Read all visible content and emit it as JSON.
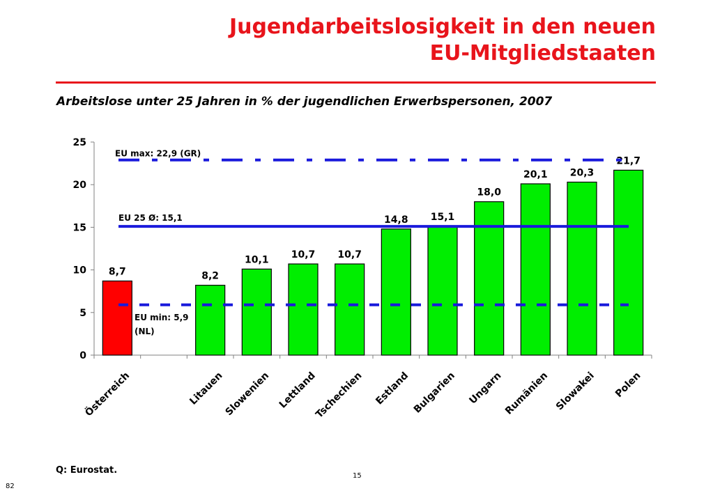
{
  "slide": {
    "title_line1": "Jugendarbeitslosigkeit in den neuen",
    "title_line2": "EU-Mitgliedstaaten",
    "subtitle": "Arbeitslose unter 25 Jahren in % der jugendlichen Erwerbspersonen, 2007",
    "source": "Q: Eurostat.",
    "page_number": "15",
    "corner_number": "82"
  },
  "chart_data": {
    "type": "bar",
    "categories": [
      "Österreich",
      "",
      "Litauen",
      "Slowenien",
      "Lettland",
      "Tschechien",
      "Estland",
      "Bulgarien",
      "Ungarn",
      "Rumänien",
      "Slowakei",
      "Polen"
    ],
    "values": [
      8.7,
      null,
      8.2,
      10.1,
      10.7,
      10.7,
      14.8,
      15.1,
      18.0,
      20.1,
      20.3,
      21.7
    ],
    "data_labels": [
      "8,7",
      "",
      "8,2",
      "10,1",
      "10,7",
      "10,7",
      "14,8",
      "15,1",
      "18,0",
      "20,1",
      "20,3",
      "21,7"
    ],
    "bar_colors": [
      "#ff0000",
      "",
      "#00ee00",
      "#00ee00",
      "#00ee00",
      "#00ee00",
      "#00ee00",
      "#00ee00",
      "#00ee00",
      "#00ee00",
      "#00ee00",
      "#00ee00"
    ],
    "ylim": [
      0,
      25
    ],
    "yticks": [
      0,
      5,
      10,
      15,
      20,
      25
    ],
    "grid": false,
    "reference_lines": [
      {
        "label": "EU max: 22,9 (GR)",
        "value": 22.9,
        "style": "dash-dot",
        "color": "#1a1adc"
      },
      {
        "label": "EU 25 Ø: 15,1",
        "value": 15.1,
        "style": "solid",
        "color": "#1a1adc"
      },
      {
        "label": "EU min: 5,9\n(NL)",
        "value": 5.9,
        "style": "dashed",
        "color": "#1a1adc"
      }
    ]
  }
}
